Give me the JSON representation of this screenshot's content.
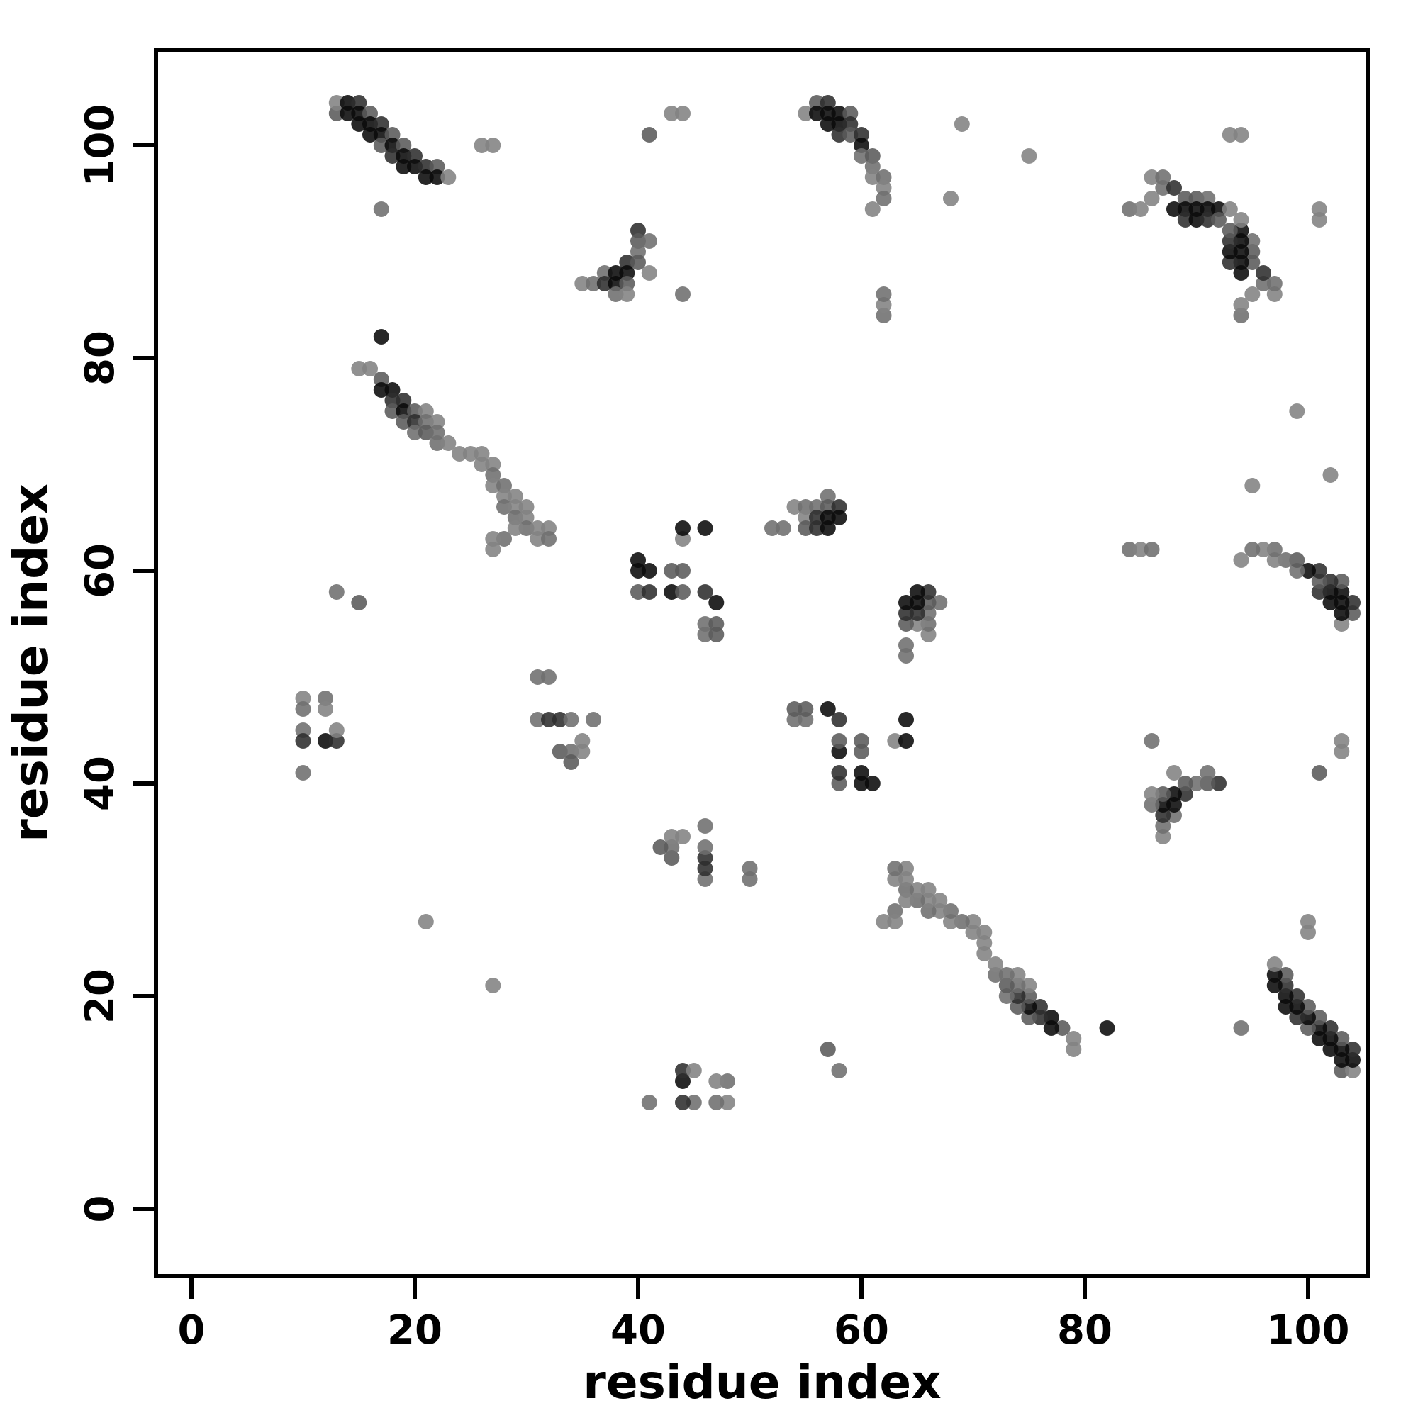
{
  "figure": {
    "background": "#ffffff",
    "frame_color": "#000000"
  },
  "chart_data": {
    "type": "scatter",
    "title": "",
    "xlabel": "residue index",
    "ylabel": "residue index",
    "x_ticks": [
      0,
      20,
      40,
      60,
      80,
      100
    ],
    "y_ticks": [
      0,
      20,
      40,
      60,
      80,
      100
    ],
    "xlim": [
      -3,
      105
    ],
    "ylim": [
      -6,
      109
    ],
    "grid": false,
    "legend": "none",
    "description": "Protein residue-residue contact map; symmetric about the diagonal; point darkness encodes contact strength (0=black ... 255=white).",
    "symmetric": true,
    "marker": {
      "shape": "circle",
      "radius_px": 11,
      "opacity": 0.88
    },
    "points_format": [
      "residue_i",
      "residue_j",
      "gray_level_0_255"
    ],
    "points": [
      [
        13,
        103,
        90
      ],
      [
        13,
        104,
        130
      ],
      [
        14,
        104,
        10
      ],
      [
        14,
        103,
        10
      ],
      [
        15,
        104,
        45
      ],
      [
        15,
        103,
        10
      ],
      [
        15,
        102,
        10
      ],
      [
        16,
        103,
        90
      ],
      [
        16,
        102,
        10
      ],
      [
        16,
        101,
        10
      ],
      [
        17,
        102,
        45
      ],
      [
        17,
        101,
        10
      ],
      [
        17,
        100,
        90
      ],
      [
        18,
        101,
        90
      ],
      [
        18,
        100,
        10
      ],
      [
        18,
        99,
        45
      ],
      [
        19,
        100,
        90
      ],
      [
        19,
        99,
        10
      ],
      [
        19,
        98,
        10
      ],
      [
        20,
        99,
        45
      ],
      [
        20,
        98,
        10
      ],
      [
        21,
        98,
        45
      ],
      [
        21,
        97,
        10
      ],
      [
        22,
        98,
        90
      ],
      [
        22,
        97,
        10
      ],
      [
        23,
        97,
        130
      ],
      [
        26,
        100,
        130
      ],
      [
        27,
        100,
        130
      ],
      [
        17,
        94,
        110
      ],
      [
        55,
        103,
        130
      ],
      [
        56,
        104,
        90
      ],
      [
        56,
        103,
        10
      ],
      [
        57,
        104,
        45
      ],
      [
        57,
        103,
        10
      ],
      [
        57,
        102,
        10
      ],
      [
        58,
        103,
        10
      ],
      [
        58,
        102,
        10
      ],
      [
        58,
        101,
        45
      ],
      [
        59,
        103,
        90
      ],
      [
        59,
        102,
        45
      ],
      [
        59,
        101,
        90
      ],
      [
        60,
        101,
        45
      ],
      [
        60,
        100,
        10
      ],
      [
        60,
        99,
        110
      ],
      [
        61,
        99,
        90
      ],
      [
        61,
        98,
        110
      ],
      [
        61,
        97,
        130
      ],
      [
        62,
        97,
        110
      ],
      [
        62,
        96,
        130
      ],
      [
        62,
        95,
        110
      ],
      [
        61,
        94,
        130
      ],
      [
        69,
        102,
        130
      ],
      [
        75,
        99,
        130
      ],
      [
        93,
        101,
        130
      ],
      [
        94,
        101,
        130
      ],
      [
        84,
        94,
        110
      ],
      [
        85,
        94,
        130
      ],
      [
        86,
        95,
        130
      ],
      [
        86,
        97,
        130
      ],
      [
        87,
        97,
        110
      ],
      [
        87,
        96,
        110
      ],
      [
        88,
        96,
        45
      ],
      [
        88,
        94,
        10
      ],
      [
        89,
        95,
        90
      ],
      [
        89,
        94,
        10
      ],
      [
        89,
        93,
        45
      ],
      [
        90,
        95,
        90
      ],
      [
        90,
        94,
        10
      ],
      [
        90,
        93,
        10
      ],
      [
        91,
        95,
        110
      ],
      [
        91,
        94,
        10
      ],
      [
        91,
        93,
        45
      ],
      [
        92,
        94,
        10
      ],
      [
        92,
        93,
        90
      ],
      [
        93,
        94,
        130
      ],
      [
        35,
        87,
        130
      ],
      [
        36,
        87,
        110
      ],
      [
        37,
        88,
        110
      ],
      [
        37,
        87,
        45
      ],
      [
        38,
        88,
        10
      ],
      [
        38,
        87,
        10
      ],
      [
        38,
        86,
        110
      ],
      [
        39,
        89,
        45
      ],
      [
        39,
        88,
        10
      ],
      [
        39,
        87,
        90
      ],
      [
        39,
        86,
        130
      ],
      [
        40,
        92,
        45
      ],
      [
        40,
        91,
        90
      ],
      [
        40,
        90,
        110
      ],
      [
        40,
        89,
        90
      ],
      [
        41,
        91,
        110
      ],
      [
        41,
        88,
        130
      ],
      [
        44,
        86,
        110
      ],
      [
        41,
        101,
        90
      ],
      [
        43,
        103,
        130
      ],
      [
        44,
        103,
        130
      ],
      [
        15,
        79,
        130
      ],
      [
        16,
        79,
        130
      ],
      [
        17,
        82,
        10
      ],
      [
        17,
        78,
        90
      ],
      [
        17,
        77,
        10
      ],
      [
        18,
        77,
        10
      ],
      [
        18,
        76,
        45
      ],
      [
        18,
        75,
        90
      ],
      [
        19,
        76,
        45
      ],
      [
        19,
        75,
        10
      ],
      [
        19,
        74,
        90
      ],
      [
        20,
        75,
        90
      ],
      [
        20,
        74,
        45
      ],
      [
        20,
        73,
        110
      ],
      [
        21,
        75,
        130
      ],
      [
        21,
        74,
        110
      ],
      [
        21,
        73,
        90
      ],
      [
        22,
        74,
        130
      ],
      [
        22,
        73,
        110
      ],
      [
        22,
        72,
        110
      ],
      [
        23,
        72,
        130
      ],
      [
        24,
        71,
        130
      ],
      [
        25,
        71,
        130
      ],
      [
        26,
        71,
        130
      ],
      [
        26,
        70,
        130
      ],
      [
        27,
        70,
        130
      ],
      [
        27,
        69,
        110
      ],
      [
        27,
        68,
        130
      ],
      [
        28,
        68,
        110
      ],
      [
        28,
        67,
        130
      ],
      [
        28,
        66,
        110
      ],
      [
        29,
        67,
        130
      ],
      [
        29,
        66,
        130
      ],
      [
        29,
        65,
        110
      ],
      [
        30,
        66,
        130
      ],
      [
        30,
        65,
        130
      ],
      [
        30,
        64,
        110
      ],
      [
        29,
        64,
        130
      ],
      [
        28,
        63,
        110
      ],
      [
        27,
        63,
        130
      ],
      [
        27,
        62,
        130
      ],
      [
        31,
        64,
        130
      ],
      [
        31,
        63,
        130
      ],
      [
        32,
        64,
        130
      ],
      [
        32,
        63,
        110
      ],
      [
        13,
        58,
        110
      ],
      [
        15,
        57,
        90
      ],
      [
        10,
        48,
        130
      ],
      [
        10,
        47,
        110
      ],
      [
        12,
        48,
        110
      ],
      [
        12,
        47,
        130
      ],
      [
        10,
        45,
        110
      ],
      [
        10,
        44,
        45
      ],
      [
        12,
        44,
        10
      ],
      [
        13,
        44,
        45
      ],
      [
        13,
        45,
        130
      ],
      [
        10,
        41,
        110
      ],
      [
        31,
        50,
        110
      ],
      [
        32,
        50,
        110
      ],
      [
        31,
        46,
        110
      ],
      [
        32,
        46,
        45
      ],
      [
        33,
        46,
        45
      ],
      [
        34,
        46,
        110
      ],
      [
        36,
        46,
        110
      ],
      [
        33,
        43,
        90
      ],
      [
        34,
        43,
        110
      ],
      [
        34,
        42,
        90
      ],
      [
        35,
        44,
        130
      ],
      [
        35,
        43,
        130
      ],
      [
        21,
        27,
        130
      ],
      [
        40,
        58,
        90
      ],
      [
        41,
        58,
        45
      ],
      [
        43,
        58,
        10
      ],
      [
        44,
        58,
        90
      ],
      [
        46,
        58,
        45
      ],
      [
        41,
        60,
        10
      ],
      [
        43,
        60,
        90
      ],
      [
        44,
        60,
        90
      ],
      [
        40,
        60,
        10
      ],
      [
        40,
        61,
        10
      ],
      [
        46,
        54,
        110
      ],
      [
        47,
        54,
        90
      ],
      [
        46,
        55,
        110
      ],
      [
        47,
        55,
        90
      ],
      [
        47,
        57,
        10
      ],
      [
        44,
        63,
        130
      ],
      [
        44,
        64,
        10
      ],
      [
        46,
        64,
        10
      ],
      [
        52,
        64,
        110
      ],
      [
        53,
        64,
        110
      ],
      [
        54,
        66,
        130
      ],
      [
        55,
        66,
        110
      ],
      [
        55,
        65,
        130
      ],
      [
        55,
        64,
        90
      ],
      [
        56,
        66,
        110
      ],
      [
        56,
        65,
        45
      ],
      [
        56,
        64,
        45
      ],
      [
        57,
        67,
        110
      ],
      [
        57,
        66,
        90
      ],
      [
        57,
        65,
        10
      ],
      [
        57,
        64,
        10
      ],
      [
        58,
        66,
        45
      ],
      [
        58,
        65,
        10
      ],
      [
        62,
        84,
        110
      ],
      [
        62,
        85,
        130
      ],
      [
        62,
        86,
        110
      ],
      [
        68,
        95,
        130
      ]
    ]
  }
}
